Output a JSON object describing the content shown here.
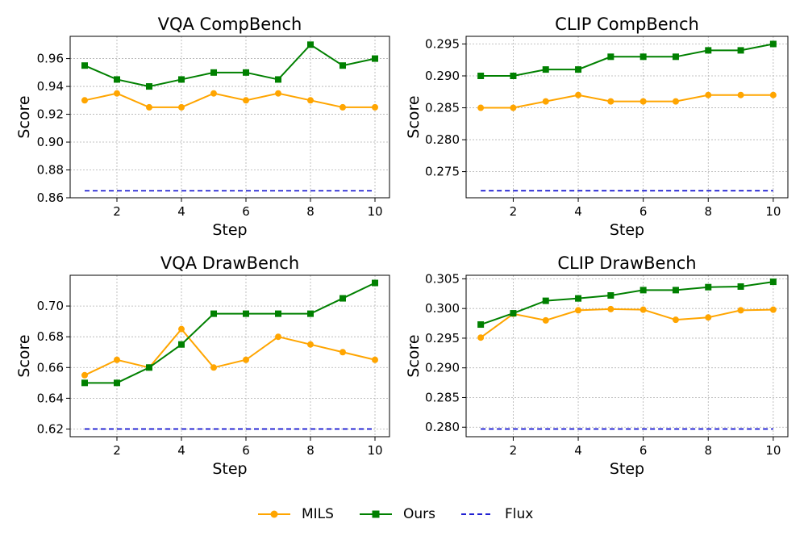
{
  "colors": {
    "mils": "#FFA500",
    "ours": "#008000",
    "flux": "#0000CC"
  },
  "legend": {
    "mils": "MILS",
    "ours": "Ours",
    "flux": "Flux"
  },
  "chart_data": [
    {
      "type": "line",
      "title": "VQA CompBench",
      "xlabel": "Step",
      "ylabel": "Score",
      "x": [
        1,
        2,
        3,
        4,
        5,
        6,
        7,
        8,
        9,
        10
      ],
      "xticks": [
        2,
        4,
        6,
        8,
        10
      ],
      "xlim": [
        0.55,
        10.45
      ],
      "ylim": [
        0.86,
        0.976
      ],
      "yticks": [
        0.86,
        0.88,
        0.9,
        0.92,
        0.94,
        0.96
      ],
      "ytick_labels": [
        "0.86",
        "0.88",
        "0.90",
        "0.92",
        "0.94",
        "0.96"
      ],
      "series": [
        {
          "name": "MILS",
          "values": [
            0.93,
            0.935,
            0.925,
            0.925,
            0.935,
            0.93,
            0.935,
            0.93,
            0.925,
            0.925
          ]
        },
        {
          "name": "Ours",
          "values": [
            0.955,
            0.945,
            0.94,
            0.945,
            0.95,
            0.95,
            0.945,
            0.97,
            0.955,
            0.96
          ]
        },
        {
          "name": "Flux",
          "values": [
            0.865,
            0.865,
            0.865,
            0.865,
            0.865,
            0.865,
            0.865,
            0.865,
            0.865,
            0.865
          ]
        }
      ]
    },
    {
      "type": "line",
      "title": "CLIP CompBench",
      "xlabel": "Step",
      "ylabel": "Score",
      "x": [
        1,
        2,
        3,
        4,
        5,
        6,
        7,
        8,
        9,
        10
      ],
      "xticks": [
        2,
        4,
        6,
        8,
        10
      ],
      "xlim": [
        0.55,
        10.45
      ],
      "ylim": [
        0.2709,
        0.2962
      ],
      "yticks": [
        0.275,
        0.28,
        0.285,
        0.29,
        0.295
      ],
      "ytick_labels": [
        "0.275",
        "0.280",
        "0.285",
        "0.290",
        "0.295"
      ],
      "series": [
        {
          "name": "MILS",
          "values": [
            0.285,
            0.285,
            0.286,
            0.287,
            0.286,
            0.286,
            0.286,
            0.287,
            0.287,
            0.287
          ]
        },
        {
          "name": "Ours",
          "values": [
            0.29,
            0.29,
            0.291,
            0.291,
            0.293,
            0.293,
            0.293,
            0.294,
            0.294,
            0.295
          ]
        },
        {
          "name": "Flux",
          "values": [
            0.272,
            0.272,
            0.272,
            0.272,
            0.272,
            0.272,
            0.272,
            0.272,
            0.272,
            0.272
          ]
        }
      ]
    },
    {
      "type": "line",
      "title": "VQA DrawBench",
      "xlabel": "Step",
      "ylabel": "Score",
      "x": [
        1,
        2,
        3,
        4,
        5,
        6,
        7,
        8,
        9,
        10
      ],
      "xticks": [
        2,
        4,
        6,
        8,
        10
      ],
      "xlim": [
        0.55,
        10.45
      ],
      "ylim": [
        0.615,
        0.72
      ],
      "yticks": [
        0.62,
        0.64,
        0.66,
        0.68,
        0.7
      ],
      "ytick_labels": [
        "0.62",
        "0.64",
        "0.66",
        "0.68",
        "0.70"
      ],
      "series": [
        {
          "name": "MILS",
          "values": [
            0.655,
            0.665,
            0.66,
            0.685,
            0.66,
            0.665,
            0.68,
            0.675,
            0.67,
            0.665
          ]
        },
        {
          "name": "Ours",
          "values": [
            0.65,
            0.65,
            0.66,
            0.675,
            0.695,
            0.695,
            0.695,
            0.695,
            0.705,
            0.715
          ]
        },
        {
          "name": "Flux",
          "values": [
            0.62,
            0.62,
            0.62,
            0.62,
            0.62,
            0.62,
            0.62,
            0.62,
            0.62,
            0.62
          ]
        }
      ]
    },
    {
      "type": "line",
      "title": "CLIP DrawBench",
      "xlabel": "Step",
      "ylabel": "Score",
      "x": [
        1,
        2,
        3,
        4,
        5,
        6,
        7,
        8,
        9,
        10
      ],
      "xticks": [
        2,
        4,
        6,
        8,
        10
      ],
      "xlim": [
        0.55,
        10.45
      ],
      "ylim": [
        0.2784,
        0.3056
      ],
      "yticks": [
        0.28,
        0.285,
        0.29,
        0.295,
        0.3,
        0.305
      ],
      "ytick_labels": [
        "0.280",
        "0.285",
        "0.290",
        "0.295",
        "0.300",
        "0.305"
      ],
      "series": [
        {
          "name": "MILS",
          "values": [
            0.2951,
            0.2991,
            0.298,
            0.2997,
            0.2999,
            0.2998,
            0.2981,
            0.2985,
            0.2997,
            0.2998
          ]
        },
        {
          "name": "Ours",
          "values": [
            0.2973,
            0.2992,
            0.3013,
            0.3017,
            0.3022,
            0.3031,
            0.3031,
            0.3036,
            0.3037,
            0.3045
          ]
        },
        {
          "name": "Flux",
          "values": [
            0.2797,
            0.2797,
            0.2797,
            0.2797,
            0.2797,
            0.2797,
            0.2797,
            0.2797,
            0.2797,
            0.2797
          ]
        }
      ]
    }
  ]
}
